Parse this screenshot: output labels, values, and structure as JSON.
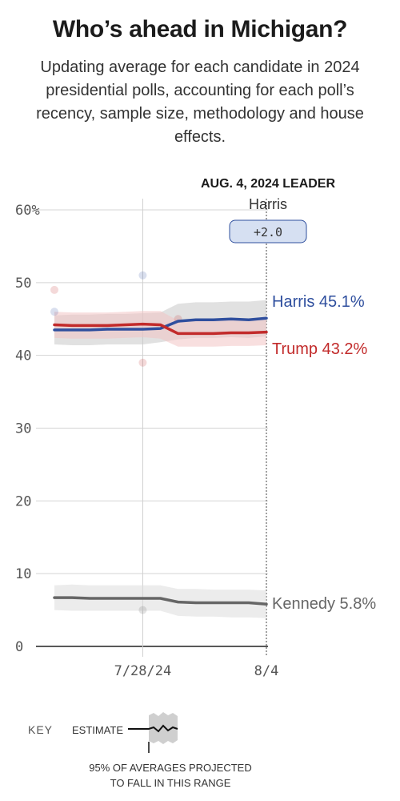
{
  "header": {
    "title": "Who’s ahead in Michigan?",
    "subtitle": "Updating average for each candidate in 2024 presidential polls, accounting for each poll’s recency, sample size, methodology and house effects."
  },
  "leader": {
    "title": "AUG. 4, 2024 LEADER",
    "name": "Harris",
    "margin": "+2.0"
  },
  "key": {
    "title": "KEY",
    "estimate_label": "ESTIMATE",
    "range_line1": "95% OF AVERAGES PROJECTED",
    "range_line2": "TO FALL IN THIS RANGE"
  },
  "chart_data": {
    "type": "line",
    "title": "Who’s ahead in Michigan?",
    "xlabel": "",
    "ylabel": "",
    "ylim": [
      0,
      60
    ],
    "yticks": [
      0,
      10,
      20,
      30,
      40,
      50,
      60
    ],
    "ytick_labels": [
      "0",
      "10",
      "20",
      "30",
      "40",
      "50",
      "60%"
    ],
    "x_dates": [
      "7/23",
      "7/24",
      "7/25",
      "7/26",
      "7/27",
      "7/28",
      "7/29",
      "7/30",
      "7/31",
      "8/1",
      "8/2",
      "8/3",
      "8/4"
    ],
    "xticks": [
      {
        "date": "7/28",
        "label": "7/28/24"
      },
      {
        "date": "8/4",
        "label": "8/4"
      }
    ],
    "grid": true,
    "series": [
      {
        "name": "Harris",
        "color": "#2f4f9e",
        "band_color": "#c8c8c8",
        "values": [
          43.5,
          43.5,
          43.5,
          43.6,
          43.6,
          43.6,
          43.7,
          44.7,
          44.9,
          44.9,
          45.0,
          44.9,
          45.1
        ],
        "lower": [
          41.5,
          41.4,
          41.4,
          41.5,
          41.5,
          41.5,
          41.8,
          42.2,
          42.4,
          42.4,
          42.5,
          42.4,
          42.6
        ],
        "upper": [
          45.5,
          45.6,
          45.6,
          45.7,
          45.7,
          45.8,
          45.9,
          47.1,
          47.3,
          47.3,
          47.4,
          47.4,
          47.6
        ],
        "end_label": "Harris 45.1%"
      },
      {
        "name": "Trump",
        "color": "#c22b2b",
        "band_color": "#f2c4c4",
        "values": [
          44.2,
          44.1,
          44.1,
          44.1,
          44.2,
          44.3,
          44.2,
          43.0,
          43.0,
          43.0,
          43.1,
          43.1,
          43.2
        ],
        "lower": [
          42.4,
          42.3,
          42.3,
          42.3,
          42.4,
          42.5,
          42.3,
          41.2,
          41.2,
          41.2,
          41.3,
          41.3,
          41.4
        ],
        "upper": [
          46.0,
          45.9,
          45.9,
          45.9,
          46.0,
          46.1,
          46.1,
          44.8,
          44.8,
          44.8,
          44.9,
          44.9,
          45.0
        ],
        "end_label": "Trump 43.2%"
      },
      {
        "name": "Kennedy",
        "color": "#666666",
        "band_color": "#dddddd",
        "values": [
          6.7,
          6.7,
          6.6,
          6.6,
          6.6,
          6.6,
          6.6,
          6.1,
          6.0,
          6.0,
          6.0,
          6.0,
          5.8
        ],
        "lower": [
          5.0,
          4.9,
          4.9,
          4.9,
          4.9,
          4.9,
          4.9,
          4.2,
          4.1,
          4.1,
          4.0,
          4.0,
          3.9
        ],
        "upper": [
          8.4,
          8.5,
          8.4,
          8.4,
          8.4,
          8.4,
          8.4,
          7.9,
          7.9,
          7.8,
          7.8,
          7.8,
          7.7
        ],
        "end_label": "Kennedy 5.8%"
      }
    ],
    "polls": [
      {
        "candidate": "Harris",
        "date": "7/23",
        "value": 46.0
      },
      {
        "candidate": "Trump",
        "date": "7/23",
        "value": 49.0
      },
      {
        "candidate": "Harris",
        "date": "7/28",
        "value": 51.0
      },
      {
        "candidate": "Trump",
        "date": "7/28",
        "value": 39.0
      },
      {
        "candidate": "Trump",
        "date": "7/30",
        "value": 45.0
      },
      {
        "candidate": "Kennedy",
        "date": "7/28",
        "value": 5.0
      }
    ]
  }
}
